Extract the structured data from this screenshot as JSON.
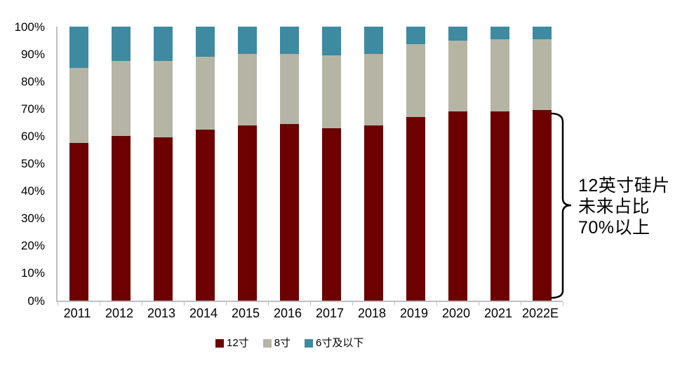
{
  "chart_data": {
    "type": "bar",
    "subtype": "stacked-100-percent",
    "title": "",
    "xlabel": "",
    "ylabel": "",
    "grid": false,
    "legend_position": "bottom",
    "categories": [
      "2011",
      "2012",
      "2013",
      "2014",
      "2015",
      "2016",
      "2017",
      "2018",
      "2019",
      "2020",
      "2021",
      "2022E"
    ],
    "series": [
      {
        "name": "12寸",
        "color": "#6D0000",
        "values": [
          57.5,
          60,
          59.5,
          62.5,
          64,
          64.5,
          63,
          64,
          67,
          69,
          69,
          69.5
        ]
      },
      {
        "name": "8寸",
        "color": "#B6B5A5",
        "values": [
          27.5,
          27.5,
          28,
          26.5,
          26,
          25.5,
          26.5,
          26,
          26.5,
          26,
          26.5,
          26
        ]
      },
      {
        "name": "6寸及以下",
        "color": "#3E8AA0",
        "values": [
          15,
          12.5,
          12.5,
          11,
          10,
          10,
          10.5,
          10,
          6.5,
          5,
          4.5,
          4.5
        ]
      }
    ],
    "y_axis": {
      "min": 0,
      "max": 100,
      "tick_labels": [
        "100%",
        "90%",
        "80%",
        "70%",
        "60%",
        "50%",
        "40%",
        "30%",
        "20%",
        "10%",
        "0%"
      ]
    }
  },
  "annotation": {
    "lines": [
      "12英寸硅片",
      "未来占比",
      "70%以上"
    ]
  },
  "colors": {
    "axis": "#BFBFBF",
    "text": "#000000",
    "brace": "#000000"
  }
}
